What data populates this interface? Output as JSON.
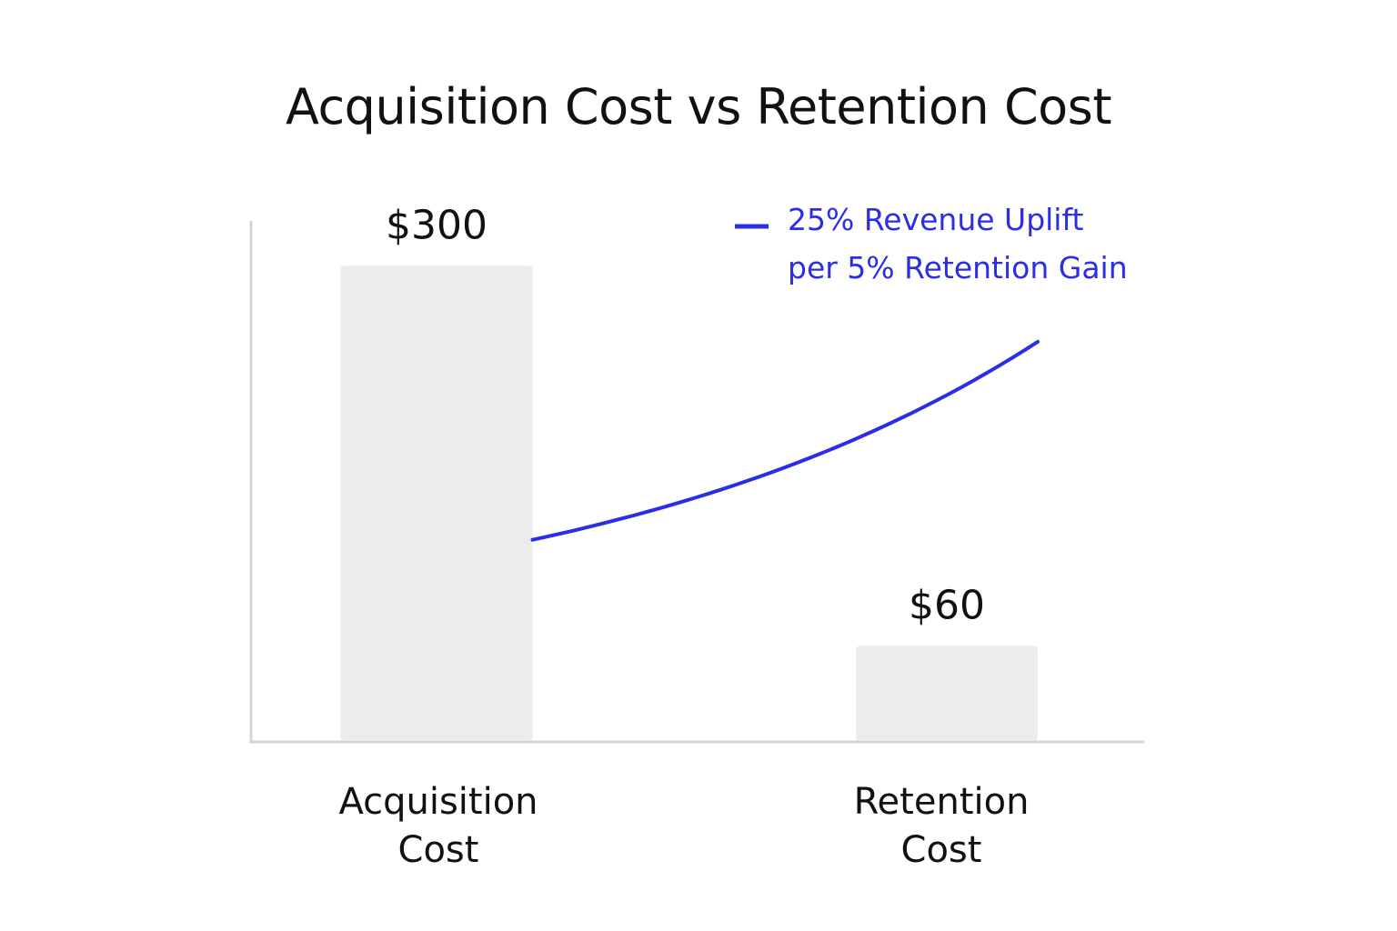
{
  "chart_data": {
    "type": "bar",
    "title": "Acquisition Cost vs Retention Cost",
    "categories": [
      [
        "Acquisition",
        "Cost"
      ],
      [
        "Retention",
        "Cost"
      ]
    ],
    "values": [
      300,
      60
    ],
    "value_labels": [
      "$300",
      "$60"
    ],
    "ylim": [
      0,
      330
    ],
    "bar_color": "#ececec",
    "axis_color": "#d4d4d4",
    "grid": false,
    "overlay_line": {
      "type": "line",
      "label_lines": [
        "25% Revenue Uplift",
        "per 5% Retention Gain"
      ],
      "color": "#2b2ee6",
      "curve": "increasing, convex",
      "y_range": [
        127,
        252
      ],
      "legend_position": "top-right"
    }
  }
}
